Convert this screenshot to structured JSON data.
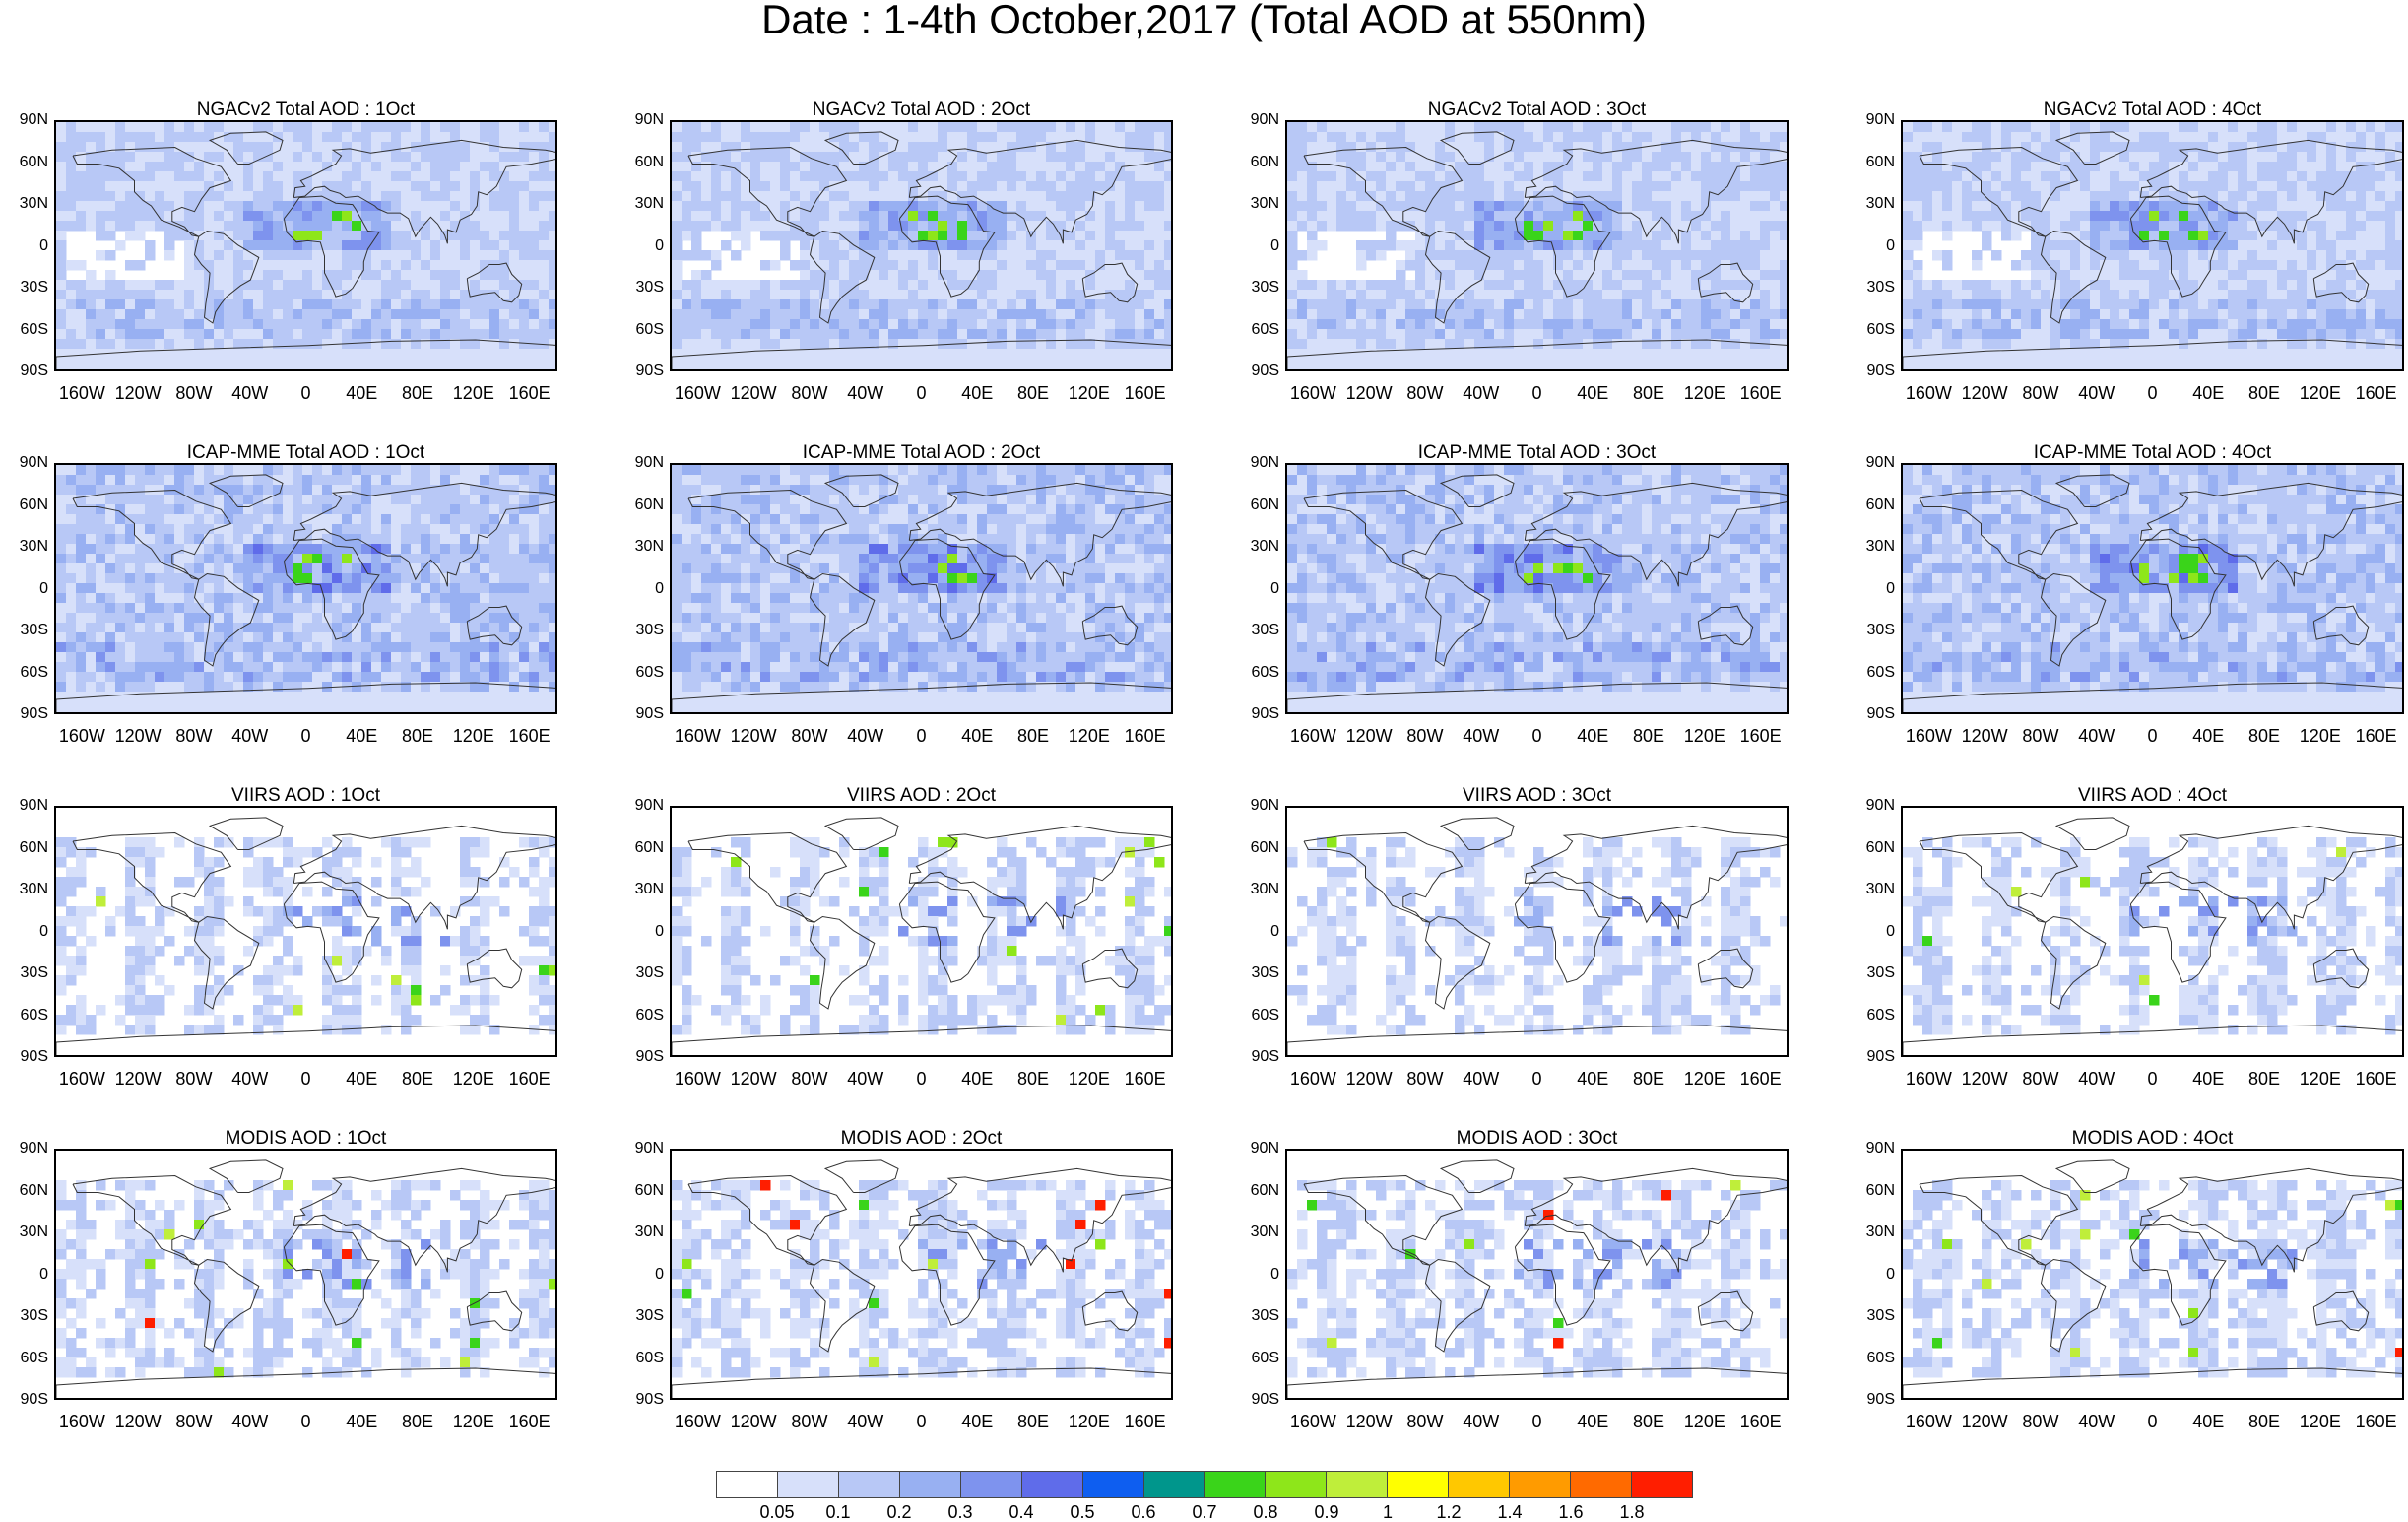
{
  "title": "Date : 1-4th October,2017 (Total AOD at 550nm)",
  "panel_titles": [
    [
      "NGACv2 Total AOD : 1Oct",
      "NGACv2 Total AOD : 2Oct",
      "NGACv2 Total AOD : 3Oct",
      "NGACv2 Total AOD : 4Oct"
    ],
    [
      "ICAP-MME Total AOD : 1Oct",
      "ICAP-MME Total AOD : 2Oct",
      "ICAP-MME Total AOD : 3Oct",
      "ICAP-MME Total AOD : 4Oct"
    ],
    [
      "VIIRS AOD : 1Oct",
      "VIIRS AOD : 2Oct",
      "VIIRS AOD : 3Oct",
      "VIIRS AOD : 4Oct"
    ],
    [
      "MODIS AOD : 1Oct",
      "MODIS AOD : 2Oct",
      "MODIS AOD : 3Oct",
      "MODIS AOD : 4Oct"
    ]
  ],
  "lat_labels": [
    "90N",
    "60N",
    "30N",
    "0",
    "30S",
    "60S",
    "90S"
  ],
  "lon_labels": [
    "160W",
    "120W",
    "80W",
    "40W",
    "0",
    "40E",
    "80E",
    "120E",
    "160E"
  ],
  "colorbar": {
    "labels": [
      "0.05",
      "0.1",
      "0.2",
      "0.3",
      "0.4",
      "0.5",
      "0.6",
      "0.7",
      "0.8",
      "0.9",
      "1",
      "1.2",
      "1.4",
      "1.6",
      "1.8"
    ],
    "colors": [
      "#ffffff",
      "#d7e0fa",
      "#b8c8f6",
      "#98b0f2",
      "#7e93ee",
      "#5f6cea",
      "#0e5ef0",
      "#00968c",
      "#3ad41a",
      "#8ee61a",
      "#bfee3a",
      "#ffff00",
      "#ffc800",
      "#ff9b00",
      "#ff6a00",
      "#ff1e00"
    ]
  }
}
